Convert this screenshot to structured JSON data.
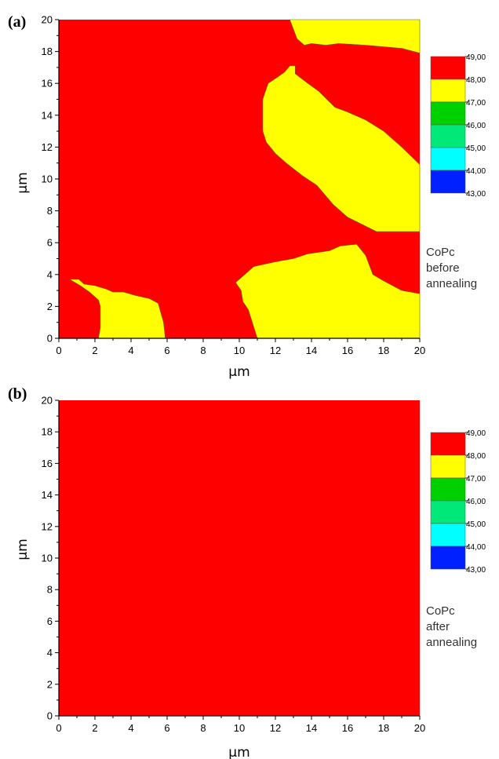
{
  "chart_data": [
    {
      "type": "heatmap",
      "panel_label": "(a)",
      "xlabel": "μm",
      "ylabel": "μm",
      "xlim": [
        0,
        20
      ],
      "ylim": [
        0,
        20
      ],
      "xticks": [
        "0",
        "2",
        "4",
        "6",
        "8",
        "10",
        "12",
        "14",
        "16",
        "18",
        "20"
      ],
      "yticks": [
        "0",
        "2",
        "4",
        "6",
        "8",
        "10",
        "12",
        "14",
        "16",
        "18",
        "20"
      ],
      "annotation": [
        "CoPc",
        "before",
        "annealing"
      ],
      "background_level": "48,00-49,00",
      "levels": [
        {
          "label": "49,00",
          "color": "#ff0000"
        },
        {
          "label": "48,00",
          "color": "#ffff00"
        },
        {
          "label": "47,00",
          "color": "#00d000"
        },
        {
          "label": "46,00",
          "color": "#00e878"
        },
        {
          "label": "45,00",
          "color": "#00ffff"
        },
        {
          "label": "44,00",
          "color": "#0020ff"
        },
        {
          "label": "43,00",
          "color": null
        }
      ],
      "regions": [
        {
          "level": "47,00-48,00",
          "color": "#ffff00",
          "points": [
            [
              12.8,
              20
            ],
            [
              20,
              20
            ],
            [
              20,
              17.9
            ],
            [
              19,
              18.2
            ],
            [
              17,
              18.4
            ],
            [
              15.5,
              18.5
            ],
            [
              14.8,
              18.4
            ],
            [
              14,
              18.5
            ],
            [
              13.6,
              18.4
            ],
            [
              13.2,
              18.8
            ],
            [
              12.8,
              20
            ]
          ]
        },
        {
          "level": "47,00-48,00",
          "color": "#ffff00",
          "points": [
            [
              12,
              16.3
            ],
            [
              12.5,
              16.7
            ],
            [
              12.8,
              17.1
            ],
            [
              13.1,
              17.1
            ],
            [
              13.1,
              16.6
            ],
            [
              13.8,
              16
            ],
            [
              14.4,
              15.5
            ],
            [
              15.3,
              14.5
            ],
            [
              16,
              14.2
            ],
            [
              17,
              13.7
            ],
            [
              18,
              13
            ],
            [
              19,
              12
            ],
            [
              20,
              10.9
            ],
            [
              20,
              6.7
            ],
            [
              17.6,
              6.7
            ],
            [
              16,
              7.6
            ],
            [
              15.2,
              8.4
            ],
            [
              14.3,
              9.6
            ],
            [
              13.5,
              10.2
            ],
            [
              12.6,
              11
            ],
            [
              12,
              11.6
            ],
            [
              11.5,
              12.3
            ],
            [
              11.3,
              13
            ],
            [
              11.3,
              15
            ],
            [
              11.6,
              16
            ],
            [
              12,
              16.3
            ]
          ]
        },
        {
          "level": "47,00-48,00",
          "color": "#ffff00",
          "points": [
            [
              9.8,
              3.5
            ],
            [
              10.8,
              4.5
            ],
            [
              12,
              4.8
            ],
            [
              13,
              5
            ],
            [
              13.8,
              5.3
            ],
            [
              15,
              5.5
            ],
            [
              15.6,
              5.8
            ],
            [
              16.5,
              5.9
            ],
            [
              17,
              5.2
            ],
            [
              17.4,
              4
            ],
            [
              18,
              3.6
            ],
            [
              19,
              3
            ],
            [
              20,
              2.8
            ],
            [
              20,
              0
            ],
            [
              11,
              0
            ],
            [
              10.5,
              1.8
            ],
            [
              10.2,
              2.3
            ],
            [
              10.1,
              3
            ],
            [
              9.8,
              3.5
            ]
          ]
        },
        {
          "level": "47,00-48,00",
          "color": "#ffff00",
          "points": [
            [
              0.6,
              3.7
            ],
            [
              1.1,
              3.7
            ],
            [
              1.4,
              3.4
            ],
            [
              2,
              3.3
            ],
            [
              2.6,
              3.1
            ],
            [
              3,
              2.9
            ],
            [
              3.6,
              2.9
            ],
            [
              4.2,
              2.7
            ],
            [
              5,
              2.5
            ],
            [
              5.5,
              2.2
            ],
            [
              5.8,
              1
            ],
            [
              5.9,
              0
            ],
            [
              2.2,
              0
            ],
            [
              2.3,
              0.7
            ],
            [
              2.3,
              2
            ],
            [
              2.2,
              2.4
            ],
            [
              1.7,
              2.9
            ],
            [
              1.2,
              3.3
            ],
            [
              0.6,
              3.7
            ]
          ]
        }
      ]
    },
    {
      "type": "heatmap",
      "panel_label": "(b)",
      "xlabel": "μm",
      "ylabel": "μm",
      "xlim": [
        0,
        20
      ],
      "ylim": [
        0,
        20
      ],
      "xticks": [
        "0",
        "2",
        "4",
        "6",
        "8",
        "10",
        "12",
        "14",
        "16",
        "18",
        "20"
      ],
      "yticks": [
        "0",
        "2",
        "4",
        "6",
        "8",
        "10",
        "12",
        "14",
        "16",
        "18",
        "20"
      ],
      "annotation": [
        "CoPc",
        "after",
        "annealing"
      ],
      "background_level": "48,00-49,00",
      "levels": [
        {
          "label": "49,00",
          "color": "#ff0000"
        },
        {
          "label": "48,00",
          "color": "#ffff00"
        },
        {
          "label": "47,00",
          "color": "#00d000"
        },
        {
          "label": "46,00",
          "color": "#00e878"
        },
        {
          "label": "45,00",
          "color": "#00ffff"
        },
        {
          "label": "44,00",
          "color": "#0020ff"
        },
        {
          "label": "43,00",
          "color": null
        }
      ],
      "regions": []
    }
  ],
  "colors": {
    "background": "#ff0000",
    "axis": "#000000"
  }
}
